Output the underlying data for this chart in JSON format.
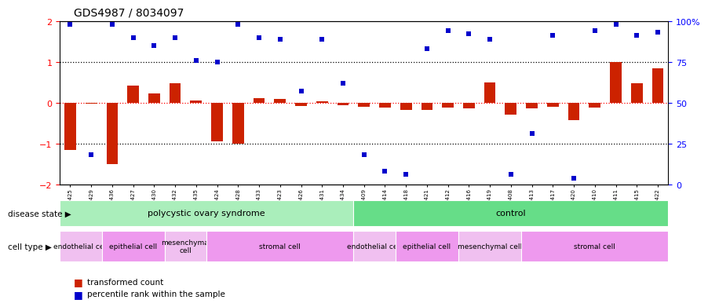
{
  "title": "GDS4987 / 8034097",
  "samples": [
    "GSM1174425",
    "GSM1174429",
    "GSM1174436",
    "GSM1174427",
    "GSM1174430",
    "GSM1174432",
    "GSM1174435",
    "GSM1174424",
    "GSM1174428",
    "GSM1174433",
    "GSM1174423",
    "GSM1174426",
    "GSM1174431",
    "GSM1174434",
    "GSM1174409",
    "GSM1174414",
    "GSM1174418",
    "GSM1174421",
    "GSM1174412",
    "GSM1174416",
    "GSM1174419",
    "GSM1174408",
    "GSM1174413",
    "GSM1174417",
    "GSM1174420",
    "GSM1174410",
    "GSM1174411",
    "GSM1174415",
    "GSM1174422"
  ],
  "bar_values": [
    -1.15,
    -0.02,
    -1.5,
    0.42,
    0.22,
    0.48,
    0.05,
    -0.95,
    -1.0,
    0.12,
    0.1,
    -0.08,
    0.04,
    -0.06,
    -0.1,
    -0.12,
    -0.18,
    -0.18,
    -0.12,
    -0.14,
    0.5,
    -0.3,
    -0.14,
    -0.1,
    -0.42,
    -0.12,
    1.0,
    0.48,
    0.85
  ],
  "scatter_values": [
    98,
    18,
    98,
    90,
    85,
    90,
    76,
    75,
    98,
    90,
    89,
    57,
    89,
    62,
    18,
    8,
    6,
    83,
    94,
    92,
    89,
    6,
    31,
    91,
    4,
    94,
    98,
    91,
    93
  ],
  "bar_color": "#cc2200",
  "scatter_color": "#0000cc",
  "disease_state_groups": [
    {
      "label": "polycystic ovary syndrome",
      "start": 0,
      "end": 14,
      "color": "#aaeebb"
    },
    {
      "label": "control",
      "start": 14,
      "end": 29,
      "color": "#66dd88"
    }
  ],
  "pcos_cell_types": [
    {
      "label": "endothelial cell",
      "start": 0,
      "end": 2,
      "color": "#f0c0f0"
    },
    {
      "label": "epithelial cell",
      "start": 2,
      "end": 5,
      "color": "#ee99ee"
    },
    {
      "label": "mesenchymal\ncell",
      "start": 5,
      "end": 7,
      "color": "#f0c0f0"
    },
    {
      "label": "stromal cell",
      "start": 7,
      "end": 14,
      "color": "#ee99ee"
    }
  ],
  "ctrl_cell_types": [
    {
      "label": "endothelial cell",
      "start": 14,
      "end": 16,
      "color": "#f0c0f0"
    },
    {
      "label": "epithelial cell",
      "start": 16,
      "end": 19,
      "color": "#ee99ee"
    },
    {
      "label": "mesenchymal cell",
      "start": 19,
      "end": 22,
      "color": "#f0c0f0"
    },
    {
      "label": "stromal cell",
      "start": 22,
      "end": 29,
      "color": "#ee99ee"
    }
  ],
  "ylim": [
    -2,
    2
  ],
  "yticks_left": [
    -2,
    -1,
    0,
    1,
    2
  ],
  "right_tick_positions": [
    -2,
    -1,
    0,
    1,
    2
  ],
  "right_tick_labels": [
    "0",
    "25",
    "50",
    "75",
    "100%"
  ]
}
